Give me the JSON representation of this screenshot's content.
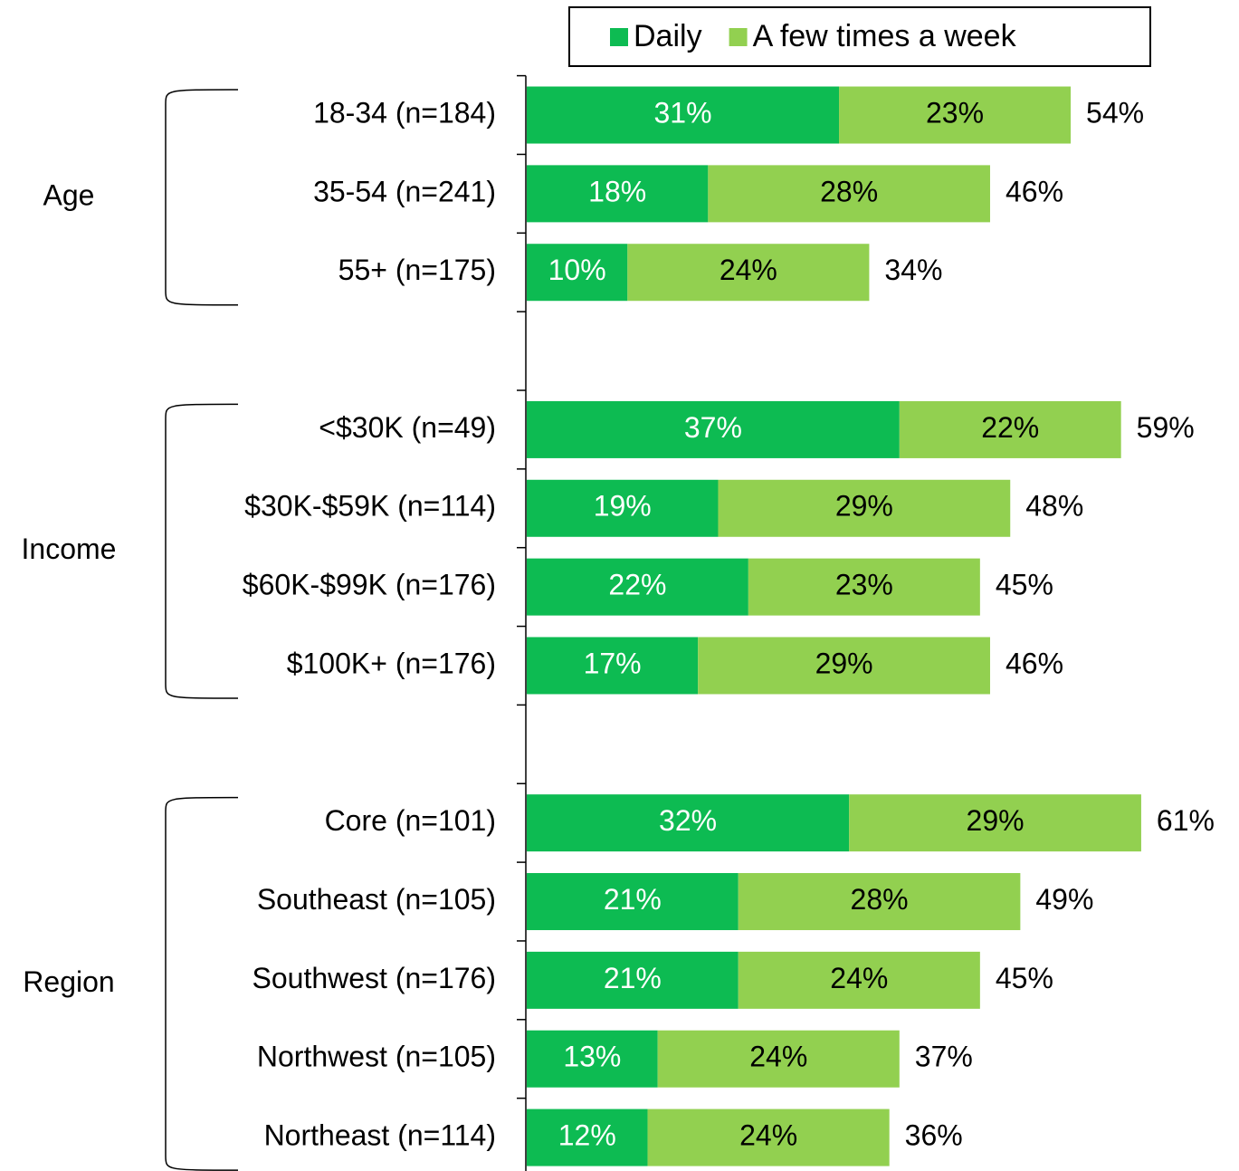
{
  "chart_data": {
    "type": "stacked_barh",
    "categories": [
      "18-34 (n=184)",
      "35-54 (n=241)",
      "55+ (n=175)",
      null,
      "<$30K (n=49)",
      "$30K-$59K (n=114)",
      "$60K-$99K (n=176)",
      "$100K+ (n=176)",
      null,
      "Core (n=101)",
      "Southeast (n=105)",
      "Southwest (n=176)",
      "Northwest (n=105)",
      "Northeast (n=114)"
    ],
    "groups": [
      "Age",
      "Income",
      "Region"
    ],
    "series": [
      {
        "name": "Daily",
        "color": "#0dbb52",
        "label_color": "#ffffff",
        "values": [
          31,
          18,
          10,
          null,
          37,
          19,
          22,
          17,
          null,
          32,
          21,
          21,
          13,
          12
        ],
        "value_labels": [
          "31%",
          "18%",
          "10%",
          null,
          "37%",
          "19%",
          "22%",
          "17%",
          null,
          "32%",
          "21%",
          "21%",
          "13%",
          "12%"
        ]
      },
      {
        "name": "A few times a week",
        "color": "#92d050",
        "label_color": "#000000",
        "values": [
          23,
          28,
          24,
          null,
          22,
          29,
          23,
          29,
          null,
          29,
          28,
          24,
          24,
          24
        ],
        "value_labels": [
          "23%",
          "28%",
          "24%",
          null,
          "22%",
          "29%",
          "23%",
          "29%",
          null,
          "29%",
          "28%",
          "24%",
          "24%",
          "24%"
        ]
      }
    ],
    "totals": {
      "values": [
        54,
        46,
        34,
        null,
        59,
        48,
        45,
        46,
        null,
        61,
        49,
        45,
        37,
        36
      ],
      "value_labels": [
        "54%",
        "46%",
        "34%",
        null,
        "59%",
        "48%",
        "45%",
        "46%",
        null,
        "61%",
        "49%",
        "45%",
        "37%",
        "36%"
      ]
    },
    "xlim": [
      0,
      65
    ],
    "legend": "top"
  }
}
